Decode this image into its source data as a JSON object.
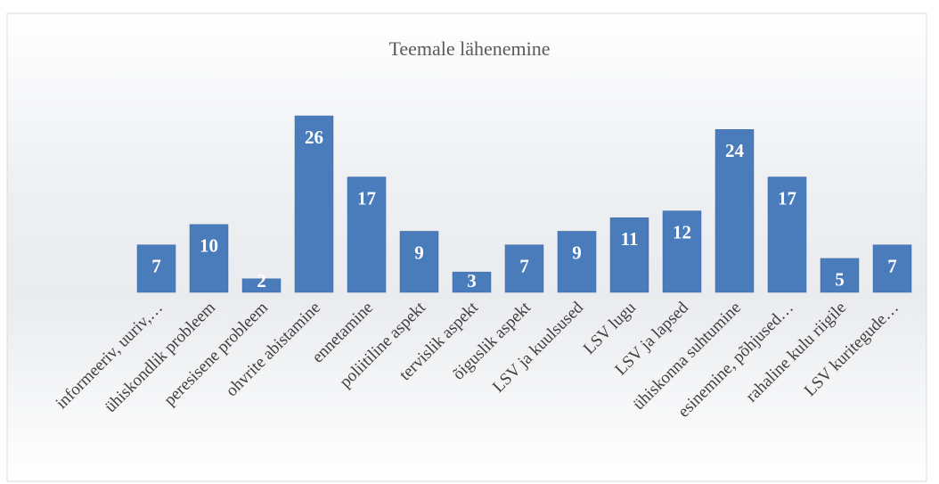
{
  "chart_data": {
    "type": "bar",
    "title": "Teemale lähenemine",
    "categories": [
      "informeeriv, uuriv,…",
      "ühiskondlik probleem",
      "peresisene probleem",
      "ohvrite abistamine",
      "ennetamine",
      "poliitiline aspekt",
      "tervislik aspekt",
      "õiguslik aspekt",
      "LSV ja kuulsused",
      "LSV lugu",
      "LSV ja lapsed",
      "ühiskonna suhtumine",
      "esinemine, põhjused…",
      "rahaline kulu riigile",
      "LSV kuritegude…"
    ],
    "values": [
      7,
      10,
      2,
      26,
      17,
      9,
      3,
      7,
      9,
      11,
      12,
      24,
      17,
      5,
      7
    ],
    "color": "#4a7bbb"
  }
}
